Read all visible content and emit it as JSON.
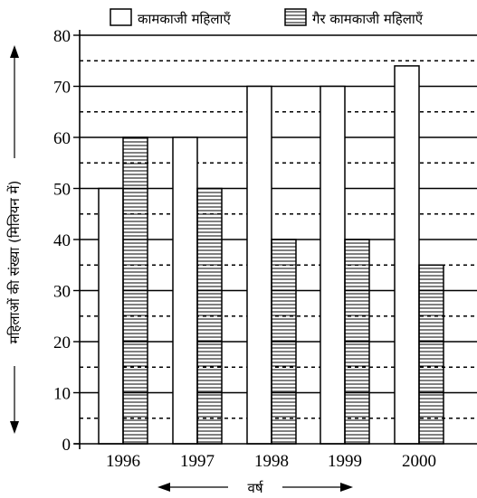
{
  "chart_data": {
    "type": "bar",
    "categories": [
      "1996",
      "1997",
      "1998",
      "1999",
      "2000"
    ],
    "series": [
      {
        "name": "कामकाजी महिलाएँ",
        "values": [
          50,
          60,
          70,
          70,
          74
        ],
        "fill": "plain"
      },
      {
        "name": "गैर कामकाजी महिलाएँ",
        "values": [
          60,
          50,
          40,
          40,
          35
        ],
        "fill": "horizontal-hatch"
      }
    ],
    "xlabel": "वर्ष",
    "ylabel": "महिलाओं की संख्या (मिलियन में)",
    "ylim": [
      0,
      80
    ],
    "yticks": [
      0,
      10,
      20,
      30,
      40,
      50,
      60,
      70,
      80
    ],
    "grid": "solid lines at every 10, dashed lines at every 5 in between",
    "legend": "top"
  }
}
